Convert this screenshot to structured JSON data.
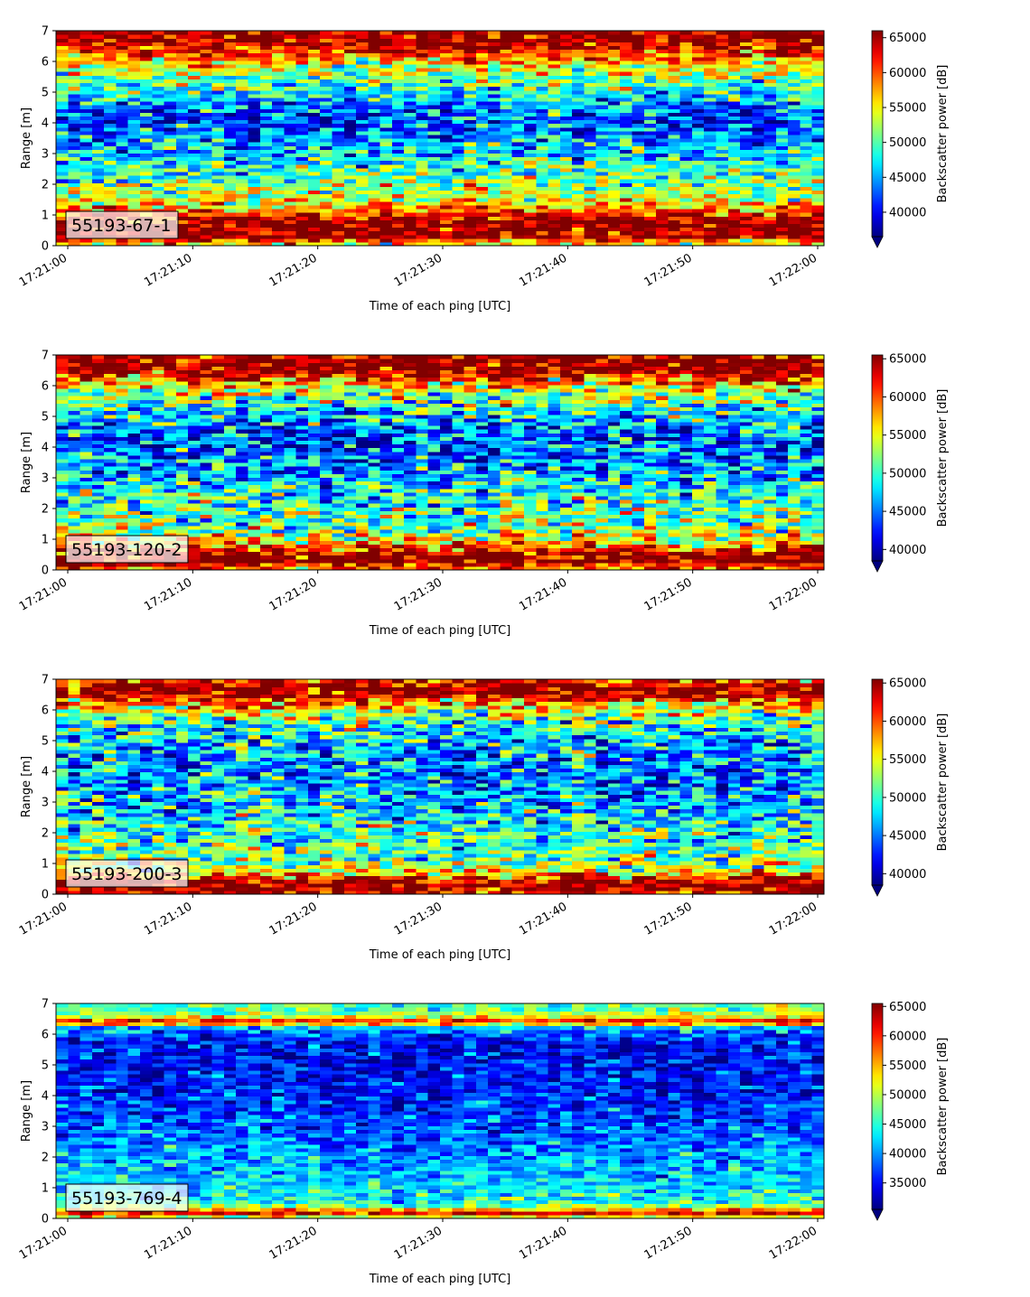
{
  "chart_data": [
    {
      "type": "heatmap",
      "panel_label": "55193-67-1",
      "xlabel": "Time of each ping [UTC]",
      "ylabel": "Range [m]",
      "colorbar_label": "Backscatter power [dB]",
      "x_range": [
        "17:21:00",
        "17:22:00"
      ],
      "xticks": [
        "17:21:00",
        "17:21:10",
        "17:21:20",
        "17:21:30",
        "17:21:40",
        "17:21:50",
        "17:22:00"
      ],
      "ylim": [
        0,
        7
      ],
      "yticks": [
        0,
        1,
        2,
        3,
        4,
        5,
        6,
        7
      ],
      "clim": [
        36500,
        66000
      ],
      "colorbar_ticks": [
        40000,
        45000,
        50000,
        55000,
        60000,
        65000
      ],
      "colormap": "jet",
      "colorbar_extend": "min",
      "profile": {
        "range_m": [
          0.1,
          0.3,
          0.5,
          0.7,
          0.9,
          1.1,
          1.3,
          1.6,
          2.0,
          2.5,
          3.0,
          3.5,
          4.0,
          4.5,
          5.0,
          5.5,
          6.0,
          6.3,
          6.5,
          6.8,
          7.0
        ],
        "power": [
          56000,
          66000,
          66000,
          66000,
          64500,
          60000,
          56500,
          53000,
          51000,
          49500,
          46500,
          44500,
          42000,
          43000,
          48000,
          52000,
          56500,
          61000,
          64000,
          66000,
          66000
        ],
        "noise": 4200
      }
    },
    {
      "type": "heatmap",
      "panel_label": "55193-120-2",
      "xlabel": "Time of each ping [UTC]",
      "ylabel": "Range [m]",
      "colorbar_label": "Backscatter power [dB]",
      "x_range": [
        "17:21:00",
        "17:22:00"
      ],
      "xticks": [
        "17:21:00",
        "17:21:10",
        "17:21:20",
        "17:21:30",
        "17:21:40",
        "17:21:50",
        "17:22:00"
      ],
      "ylim": [
        0,
        7
      ],
      "yticks": [
        0,
        1,
        2,
        3,
        4,
        5,
        6,
        7
      ],
      "clim": [
        38500,
        65500
      ],
      "colorbar_ticks": [
        40000,
        45000,
        50000,
        55000,
        60000,
        65000
      ],
      "colormap": "jet",
      "colorbar_extend": "min",
      "profile": {
        "range_m": [
          0.1,
          0.3,
          0.5,
          0.7,
          0.9,
          1.2,
          1.5,
          2.0,
          2.5,
          3.0,
          3.5,
          4.0,
          4.5,
          5.0,
          5.5,
          6.0,
          6.3,
          6.5,
          6.8,
          7.0
        ],
        "power": [
          60000,
          65500,
          65500,
          62000,
          57000,
          53500,
          51500,
          50500,
          49000,
          47000,
          45500,
          44000,
          44500,
          47000,
          50500,
          56000,
          61500,
          65500,
          65500,
          64000
        ],
        "noise": 4300
      }
    },
    {
      "type": "heatmap",
      "panel_label": "55193-200-3",
      "xlabel": "Time of each ping [UTC]",
      "ylabel": "Range [m]",
      "colorbar_label": "Backscatter power [dB]",
      "x_range": [
        "17:21:00",
        "17:22:00"
      ],
      "xticks": [
        "17:21:00",
        "17:21:10",
        "17:21:20",
        "17:21:30",
        "17:21:40",
        "17:21:50",
        "17:22:00"
      ],
      "ylim": [
        0,
        7
      ],
      "yticks": [
        0,
        1,
        2,
        3,
        4,
        5,
        6,
        7
      ],
      "clim": [
        38500,
        65500
      ],
      "colorbar_ticks": [
        40000,
        45000,
        50000,
        55000,
        60000,
        65000
      ],
      "colormap": "jet",
      "colorbar_extend": "min",
      "profile": {
        "range_m": [
          0.1,
          0.3,
          0.5,
          0.7,
          0.9,
          1.2,
          1.5,
          2.0,
          2.5,
          3.0,
          3.5,
          4.0,
          4.5,
          5.0,
          5.5,
          6.0,
          6.3,
          6.5,
          6.8,
          7.0
        ],
        "power": [
          64000,
          65500,
          63500,
          57000,
          53500,
          51500,
          51000,
          50000,
          48500,
          47000,
          46000,
          45000,
          45500,
          47500,
          50000,
          54500,
          59500,
          64500,
          65500,
          58000
        ],
        "noise": 4300
      }
    },
    {
      "type": "heatmap",
      "panel_label": "55193-769-4",
      "xlabel": "Time of each ping [UTC]",
      "ylabel": "Range [m]",
      "colorbar_label": "Backscatter power [dB]",
      "x_range": [
        "17:21:00",
        "17:22:00"
      ],
      "xticks": [
        "17:21:00",
        "17:21:10",
        "17:21:20",
        "17:21:30",
        "17:21:40",
        "17:21:50",
        "17:22:00"
      ],
      "ylim": [
        0,
        7
      ],
      "yticks": [
        0,
        1,
        2,
        3,
        4,
        5,
        6,
        7
      ],
      "clim": [
        30500,
        65500
      ],
      "colorbar_ticks": [
        35000,
        40000,
        45000,
        50000,
        55000,
        60000,
        65000
      ],
      "colormap": "jet",
      "colorbar_extend": "min",
      "profile": {
        "range_m": [
          0.1,
          0.2,
          0.3,
          0.45,
          0.6,
          0.9,
          1.2,
          1.6,
          2.0,
          2.5,
          3.0,
          3.5,
          4.0,
          4.5,
          5.0,
          5.5,
          6.0,
          6.25,
          6.4,
          6.6,
          6.85,
          7.0
        ],
        "power": [
          52000,
          63500,
          56000,
          46000,
          43500,
          43000,
          42000,
          41000,
          40000,
          38500,
          37500,
          36500,
          35500,
          35000,
          35000,
          35000,
          36500,
          42000,
          63000,
          50000,
          46000,
          45000
        ],
        "noise": 3200
      }
    }
  ]
}
